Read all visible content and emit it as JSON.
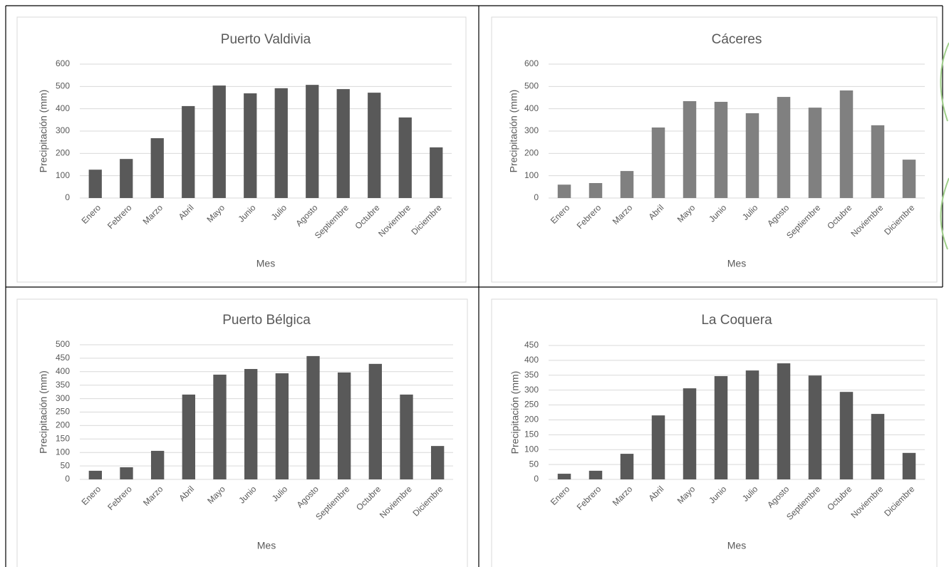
{
  "chart_data": [
    {
      "type": "bar",
      "title": "Puerto Valdivia",
      "x_label": "Mes",
      "y_label": "Precipitación (mm)",
      "categories": [
        "Enero",
        "Febrero",
        "Marzo",
        "Abril",
        "Mayo",
        "Junio",
        "Julio",
        "Agosto",
        "Septiembre",
        "Octubre",
        "Noviembre",
        "Diciembre"
      ],
      "values": [
        127,
        175,
        268,
        412,
        504,
        469,
        492,
        507,
        488,
        472,
        361,
        227
      ],
      "color": "#595959",
      "ylim": [
        0,
        600
      ],
      "yticks": [
        0,
        100,
        200,
        300,
        400,
        500,
        600
      ],
      "grid": true
    },
    {
      "type": "bar",
      "title": "Cáceres",
      "x_label": "Mes",
      "y_label": "Precipitación (mm)",
      "categories": [
        "Enero",
        "Febrero",
        "Marzo",
        "Abril",
        "Mayo",
        "Junio",
        "Julio",
        "Agosto",
        "Septiembre",
        "Octubre",
        "Noviembre",
        "Diciembre"
      ],
      "values": [
        60,
        67,
        121,
        316,
        434,
        431,
        380,
        453,
        405,
        482,
        326,
        172
      ],
      "color": "#808080",
      "ylim": [
        0,
        600
      ],
      "yticks": [
        0,
        100,
        200,
        300,
        400,
        500,
        600
      ],
      "grid": true
    },
    {
      "type": "bar",
      "title": "Puerto Bélgica",
      "x_label": "Mes",
      "y_label": "Precipitación (mm)",
      "categories": [
        "Enero",
        "Febrero",
        "Marzo",
        "Abril",
        "Mayo",
        "Junio",
        "Julio",
        "Agosto",
        "Septiembre",
        "Octubre",
        "Noviembre",
        "Diciembre"
      ],
      "values": [
        32,
        45,
        106,
        315,
        389,
        410,
        394,
        458,
        397,
        429,
        315,
        124
      ],
      "color": "#595959",
      "ylim": [
        0,
        500
      ],
      "yticks": [
        0,
        50,
        100,
        150,
        200,
        250,
        300,
        350,
        400,
        450,
        500
      ],
      "grid": true
    },
    {
      "type": "bar",
      "title": "La Coquera",
      "x_label": "Mes",
      "y_label": "Precipitación (mm)",
      "categories": [
        "Enero",
        "Febrero",
        "Marzo",
        "Abril",
        "Mayo",
        "Junio",
        "Julio",
        "Agosto",
        "Septiembre",
        "Octubre",
        "Noviembre",
        "Diciembre"
      ],
      "values": [
        19,
        29,
        86,
        215,
        306,
        347,
        366,
        390,
        349,
        294,
        220,
        89
      ],
      "color": "#595959",
      "ylim": [
        0,
        450
      ],
      "yticks": [
        0,
        50,
        100,
        150,
        200,
        250,
        300,
        350,
        400,
        450
      ],
      "grid": true
    }
  ]
}
